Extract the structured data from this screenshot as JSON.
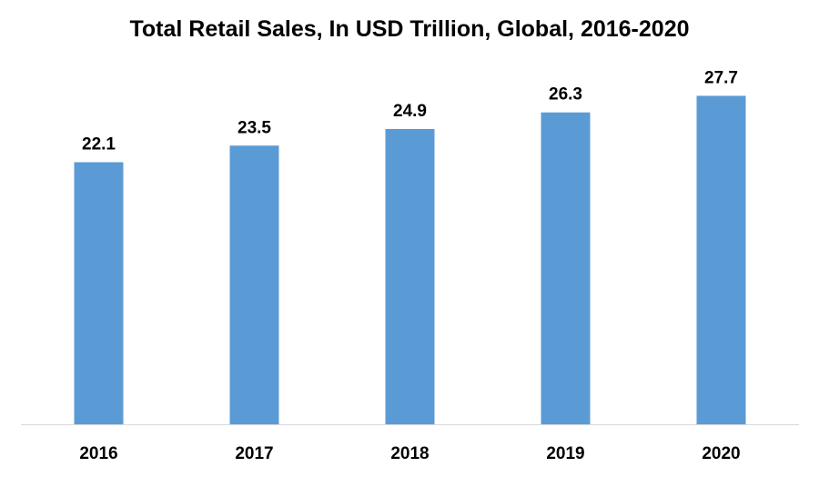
{
  "chart_data": {
    "type": "bar",
    "title": "Total Retail Sales, In USD Trillion, Global, 2016-2020",
    "categories": [
      "2016",
      "2017",
      "2018",
      "2019",
      "2020"
    ],
    "values": [
      22.1,
      23.5,
      24.9,
      26.3,
      27.7
    ],
    "xlabel": "",
    "ylabel": "",
    "ylim": [
      0,
      28.5
    ],
    "grid": false,
    "legend": "none",
    "bar_color": "#5b9bd5",
    "axis_color": "#d9d9d9"
  }
}
